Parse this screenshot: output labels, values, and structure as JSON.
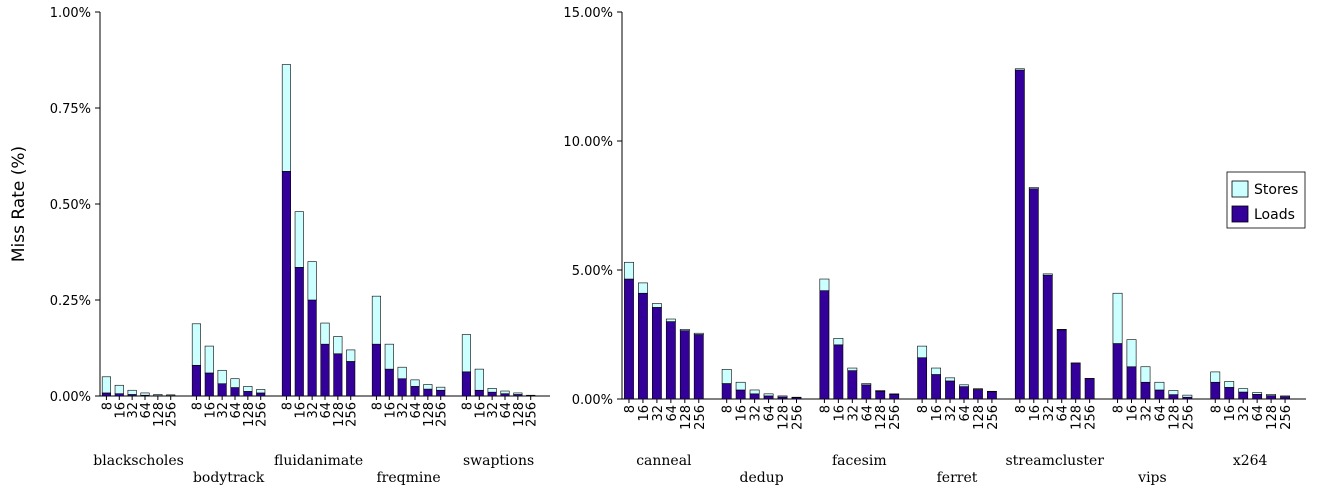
{
  "chart_data": [
    {
      "type": "bar",
      "stacked": true,
      "y_label": "Miss Rate (%)",
      "ylim": [
        0,
        1
      ],
      "yticks": [
        {
          "value": 0,
          "label": "0.00%"
        },
        {
          "value": 0.25,
          "label": "0.25%"
        },
        {
          "value": 0.5,
          "label": "0.50%"
        },
        {
          "value": 0.75,
          "label": "0.75%"
        },
        {
          "value": 1,
          "label": "1.00%"
        }
      ],
      "groups": [
        {
          "name": "blackscholes",
          "categories": [
            "8",
            "16",
            "32",
            "64",
            "128",
            "256"
          ]
        },
        {
          "name": "bodytrack",
          "categories": [
            "8",
            "16",
            "32",
            "64",
            "128",
            "256"
          ]
        },
        {
          "name": "fluidanimate",
          "categories": [
            "8",
            "16",
            "32",
            "64",
            "128",
            "256"
          ]
        },
        {
          "name": "freqmine",
          "categories": [
            "8",
            "16",
            "32",
            "64",
            "128",
            "256"
          ]
        },
        {
          "name": "swaptions",
          "categories": [
            "8",
            "16",
            "32",
            "64",
            "128",
            "256"
          ]
        }
      ],
      "series": [
        {
          "name": "Loads",
          "color": "#330099",
          "values": [
            [
              0.008,
              0.006,
              0.004,
              0.002,
              0.001,
              0.001
            ],
            [
              0.08,
              0.06,
              0.032,
              0.022,
              0.012,
              0.008
            ],
            [
              0.585,
              0.335,
              0.25,
              0.135,
              0.11,
              0.09
            ],
            [
              0.135,
              0.07,
              0.045,
              0.025,
              0.018,
              0.015
            ],
            [
              0.063,
              0.015,
              0.01,
              0.006,
              0.004,
              0.001
            ]
          ]
        },
        {
          "name": "Stores",
          "color": "#ccffff",
          "values": [
            [
              0.042,
              0.022,
              0.011,
              0.006,
              0.003,
              0.002
            ],
            [
              0.108,
              0.07,
              0.035,
              0.023,
              0.013,
              0.009
            ],
            [
              0.278,
              0.145,
              0.1,
              0.055,
              0.045,
              0.03
            ],
            [
              0.125,
              0.065,
              0.03,
              0.017,
              0.012,
              0.008
            ],
            [
              0.097,
              0.055,
              0.01,
              0.007,
              0.004,
              0.001
            ]
          ]
        }
      ]
    },
    {
      "type": "bar",
      "stacked": true,
      "legend": "right",
      "ylim": [
        0,
        15
      ],
      "yticks": [
        {
          "value": 0,
          "label": "0.00%"
        },
        {
          "value": 5,
          "label": "5.00%"
        },
        {
          "value": 10,
          "label": "10.00%"
        },
        {
          "value": 15,
          "label": "15.00%"
        }
      ],
      "groups": [
        {
          "name": "canneal",
          "categories": [
            "8",
            "16",
            "32",
            "64",
            "128",
            "256"
          ]
        },
        {
          "name": "dedup",
          "categories": [
            "8",
            "16",
            "32",
            "64",
            "128",
            "256"
          ]
        },
        {
          "name": "facesim",
          "categories": [
            "8",
            "16",
            "32",
            "64",
            "128",
            "256"
          ]
        },
        {
          "name": "ferret",
          "categories": [
            "8",
            "16",
            "32",
            "64",
            "128",
            "256"
          ]
        },
        {
          "name": "streamcluster",
          "categories": [
            "8",
            "16",
            "32",
            "64",
            "128",
            "256"
          ]
        },
        {
          "name": "vips",
          "categories": [
            "8",
            "16",
            "32",
            "64",
            "128",
            "256"
          ]
        },
        {
          "name": "x264",
          "categories": [
            "8",
            "16",
            "32",
            "64",
            "128",
            "256"
          ]
        }
      ],
      "series": [
        {
          "name": "Loads",
          "color": "#330099",
          "values": [
            [
              4.65,
              4.1,
              3.55,
              3.0,
              2.65,
              2.5
            ],
            [
              0.6,
              0.35,
              0.2,
              0.12,
              0.08,
              0.05
            ],
            [
              4.2,
              2.1,
              1.1,
              0.55,
              0.3,
              0.18
            ],
            [
              1.6,
              0.95,
              0.7,
              0.48,
              0.37,
              0.28
            ],
            [
              12.75,
              8.15,
              4.8,
              2.68,
              1.39,
              0.79
            ],
            [
              2.15,
              1.25,
              0.65,
              0.35,
              0.17,
              0.07
            ],
            [
              0.65,
              0.45,
              0.27,
              0.18,
              0.13,
              0.09
            ]
          ]
        },
        {
          "name": "Stores",
          "color": "#ccffff",
          "values": [
            [
              0.65,
              0.4,
              0.15,
              0.1,
              0.05,
              0.05
            ],
            [
              0.55,
              0.3,
              0.15,
              0.08,
              0.04,
              0.02
            ],
            [
              0.45,
              0.25,
              0.1,
              0.05,
              0.03,
              0.02
            ],
            [
              0.45,
              0.25,
              0.12,
              0.07,
              0.03,
              0.02
            ],
            [
              0.05,
              0.05,
              0.05,
              0.02,
              0.01,
              0.01
            ],
            [
              1.95,
              1.05,
              0.6,
              0.3,
              0.16,
              0.08
            ],
            [
              0.4,
              0.23,
              0.13,
              0.07,
              0.05,
              0.03
            ]
          ]
        }
      ]
    }
  ]
}
